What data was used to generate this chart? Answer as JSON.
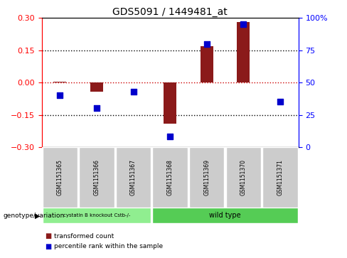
{
  "title": "GDS5091 / 1449481_at",
  "samples": [
    "GSM1151365",
    "GSM1151366",
    "GSM1151367",
    "GSM1151368",
    "GSM1151369",
    "GSM1151370",
    "GSM1151371"
  ],
  "red_values": [
    0.003,
    -0.042,
    0.002,
    -0.19,
    0.17,
    0.28,
    0.002
  ],
  "blue_values": [
    40,
    30,
    43,
    8,
    80,
    95,
    35
  ],
  "ylim_left": [
    -0.3,
    0.3
  ],
  "ylim_right": [
    0,
    100
  ],
  "yticks_left": [
    -0.3,
    -0.15,
    0,
    0.15,
    0.3
  ],
  "yticks_right": [
    0,
    25,
    50,
    75,
    100
  ],
  "yticklabels_right": [
    "0",
    "25",
    "50",
    "75",
    "100%"
  ],
  "hlines": [
    0.15,
    0.0,
    -0.15
  ],
  "group1_label": "cystatin B knockout Cstb-/-",
  "group2_label": "wild type",
  "group1_indices": [
    0,
    1,
    2
  ],
  "group2_indices": [
    3,
    4,
    5,
    6
  ],
  "group1_color": "#90EE90",
  "group2_color": "#55CC55",
  "bar_color": "#8B1A1A",
  "dot_color": "#0000CC",
  "background_color": "#FFFFFF",
  "sample_box_color": "#CCCCCC",
  "zero_line_color": "#CC0000",
  "dotted_line_color": "#000000",
  "legend_red_label": "transformed count",
  "legend_blue_label": "percentile rank within the sample",
  "genotype_label": "genotype/variation",
  "bar_width": 0.35,
  "dot_size": 28
}
